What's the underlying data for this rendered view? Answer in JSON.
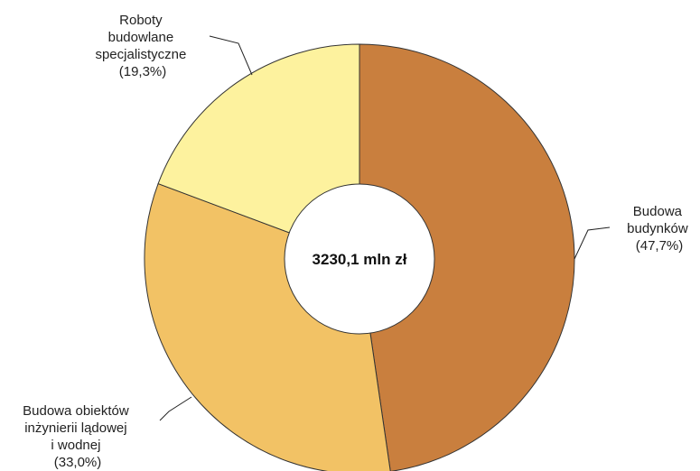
{
  "chart_data": {
    "type": "pie",
    "donut": true,
    "center_label": "3230,1 mln zł",
    "total": 3230.1,
    "unit": "mln zł",
    "slices": [
      {
        "name": "Budowa budynków",
        "lines": [
          "Budowa",
          "budynków",
          "(47,7%)"
        ],
        "value": 47.7,
        "color": "#c97f3e"
      },
      {
        "name": "Budowa obiektów inżynierii lądowej i wodnej",
        "lines": [
          "Budowa obiektów",
          "inżynierii lądowej",
          "i wodnej",
          "(33,0%)"
        ],
        "value": 33.0,
        "color": "#f2c265"
      },
      {
        "name": "Roboty budowlane specjalistyczne",
        "lines": [
          "Roboty",
          "budowlane",
          "specjalistyczne",
          "(19,3%)"
        ],
        "value": 19.3,
        "color": "#fdf29e"
      }
    ],
    "legend": "none"
  }
}
